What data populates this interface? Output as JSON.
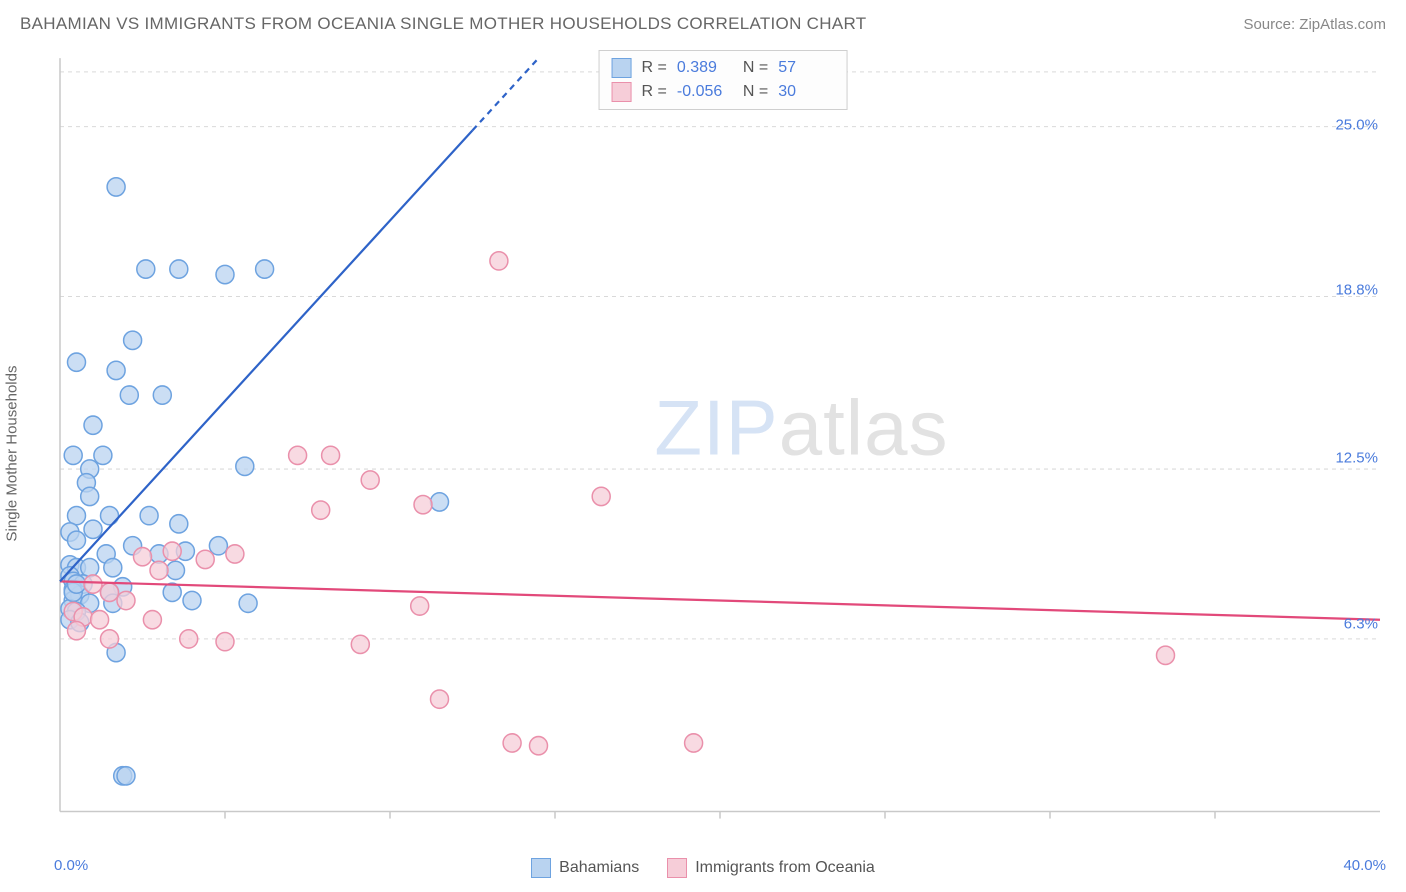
{
  "header": {
    "title": "BAHAMIAN VS IMMIGRANTS FROM OCEANIA SINGLE MOTHER HOUSEHOLDS CORRELATION CHART",
    "source": "Source: ZipAtlas.com"
  },
  "axes": {
    "ylabel": "Single Mother Households",
    "x_min_label": "0.0%",
    "x_max_label": "40.0%",
    "xmin": 0.0,
    "xmax": 40.0,
    "ymin": 0.0,
    "ymax": 27.5,
    "y_ticks": [
      {
        "value": 6.3,
        "label": "6.3%"
      },
      {
        "value": 12.5,
        "label": "12.5%"
      },
      {
        "value": 18.8,
        "label": "18.8%"
      },
      {
        "value": 25.0,
        "label": "25.0%"
      }
    ],
    "grid_color": "#d9d9d9",
    "axis_color": "#c9c9c9",
    "tick_label_color": "#4a7bdc",
    "axis_label_color": "#666666",
    "x_tick_positions": [
      5,
      10,
      15,
      20,
      25,
      30,
      35
    ]
  },
  "series": {
    "bahamians": {
      "label": "Bahamians",
      "color_fill": "#b9d3f0",
      "color_stroke": "#6ea3e0",
      "line_color": "#2e63c8",
      "R": "0.389",
      "N": "57",
      "trend": {
        "x1": 0.0,
        "y1": 8.4,
        "x2": 14.5,
        "y2": 27.5,
        "dashed_beyond_x": 12.5
      },
      "points": [
        [
          1.7,
          22.8
        ],
        [
          2.6,
          19.8
        ],
        [
          3.6,
          19.8
        ],
        [
          5.0,
          19.6
        ],
        [
          6.2,
          19.8
        ],
        [
          2.2,
          17.2
        ],
        [
          0.5,
          16.4
        ],
        [
          1.7,
          16.1
        ],
        [
          2.1,
          15.2
        ],
        [
          3.1,
          15.2
        ],
        [
          1.0,
          14.1
        ],
        [
          0.4,
          13.0
        ],
        [
          1.3,
          13.0
        ],
        [
          0.9,
          12.5
        ],
        [
          5.6,
          12.6
        ],
        [
          0.8,
          12.0
        ],
        [
          0.9,
          11.5
        ],
        [
          11.5,
          11.3
        ],
        [
          0.5,
          10.8
        ],
        [
          1.5,
          10.8
        ],
        [
          2.7,
          10.8
        ],
        [
          1.0,
          10.3
        ],
        [
          3.6,
          10.5
        ],
        [
          0.3,
          10.2
        ],
        [
          0.5,
          9.9
        ],
        [
          2.2,
          9.7
        ],
        [
          1.4,
          9.4
        ],
        [
          3.0,
          9.4
        ],
        [
          3.8,
          9.5
        ],
        [
          0.3,
          9.0
        ],
        [
          0.5,
          8.9
        ],
        [
          0.9,
          8.9
        ],
        [
          1.6,
          8.9
        ],
        [
          3.5,
          8.8
        ],
        [
          4.8,
          9.7
        ],
        [
          0.3,
          8.6
        ],
        [
          0.4,
          8.4
        ],
        [
          0.7,
          8.3
        ],
        [
          1.9,
          8.2
        ],
        [
          0.4,
          8.1
        ],
        [
          1.5,
          8.0
        ],
        [
          0.6,
          7.9
        ],
        [
          3.4,
          8.0
        ],
        [
          0.4,
          7.7
        ],
        [
          0.9,
          7.6
        ],
        [
          1.6,
          7.6
        ],
        [
          4.0,
          7.7
        ],
        [
          0.3,
          7.4
        ],
        [
          0.5,
          7.3
        ],
        [
          5.7,
          7.6
        ],
        [
          0.3,
          7.0
        ],
        [
          0.6,
          6.9
        ],
        [
          1.7,
          5.8
        ],
        [
          1.9,
          1.3
        ],
        [
          2.0,
          1.3
        ],
        [
          0.4,
          8.0
        ],
        [
          0.5,
          8.3
        ]
      ]
    },
    "oceania": {
      "label": "Immigrants from Oceania",
      "color_fill": "#f6cdd8",
      "color_stroke": "#ea90ab",
      "line_color": "#e2497a",
      "R": "-0.056",
      "N": "30",
      "trend": {
        "x1": 0.0,
        "y1": 8.4,
        "x2": 40.0,
        "y2": 7.0
      },
      "points": [
        [
          13.3,
          20.1
        ],
        [
          7.2,
          13.0
        ],
        [
          8.2,
          13.0
        ],
        [
          9.4,
          12.1
        ],
        [
          11.0,
          11.2
        ],
        [
          7.9,
          11.0
        ],
        [
          16.4,
          11.5
        ],
        [
          2.5,
          9.3
        ],
        [
          4.4,
          9.2
        ],
        [
          3.4,
          9.5
        ],
        [
          5.3,
          9.4
        ],
        [
          3.0,
          8.8
        ],
        [
          1.0,
          8.3
        ],
        [
          1.5,
          8.0
        ],
        [
          2.0,
          7.7
        ],
        [
          0.4,
          7.3
        ],
        [
          0.7,
          7.1
        ],
        [
          1.2,
          7.0
        ],
        [
          2.8,
          7.0
        ],
        [
          10.9,
          7.5
        ],
        [
          0.5,
          6.6
        ],
        [
          1.5,
          6.3
        ],
        [
          3.9,
          6.3
        ],
        [
          5.0,
          6.2
        ],
        [
          9.1,
          6.1
        ],
        [
          33.5,
          5.7
        ],
        [
          11.5,
          4.1
        ],
        [
          13.7,
          2.5
        ],
        [
          14.5,
          2.4
        ],
        [
          19.2,
          2.5
        ]
      ]
    }
  },
  "legend": {
    "items": [
      {
        "key": "bahamians"
      },
      {
        "key": "oceania"
      }
    ]
  },
  "stats_box": {
    "r_label": "R =",
    "n_label": "N ="
  },
  "watermark": {
    "zip": "ZIP",
    "atlas": "atlas"
  },
  "style": {
    "marker_radius": 9,
    "marker_stroke_width": 1.5,
    "trend_line_width": 2.2,
    "background_color": "#ffffff",
    "title_color": "#666666",
    "title_fontsize": 17,
    "source_color": "#888888"
  }
}
